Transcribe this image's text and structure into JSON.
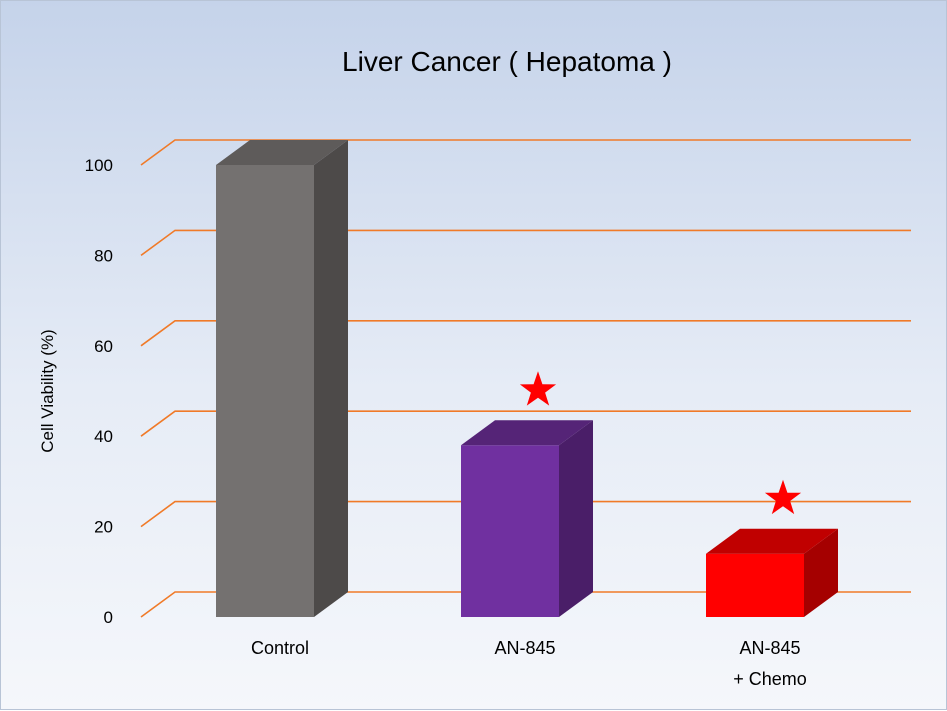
{
  "chart_data": {
    "type": "bar",
    "title": "Liver Cancer ( Hepatoma )",
    "xlabel": "",
    "ylabel": "Cell Viability (%)",
    "ylim": [
      0,
      100
    ],
    "yticks": [
      0,
      20,
      40,
      60,
      80,
      100
    ],
    "grid": true,
    "categories": [
      "Control",
      "AN-845",
      "AN-845\n+ Chemo"
    ],
    "category_lines": [
      [
        "Control"
      ],
      [
        "AN-845"
      ],
      [
        "AN-845",
        "+ Chemo"
      ]
    ],
    "values": [
      100,
      38,
      14
    ],
    "significance_marks": [
      false,
      true,
      true
    ],
    "colors": {
      "bars": [
        [
          "#747170",
          "#4d4a49",
          "#5e5b5a"
        ],
        [
          "#7030a0",
          "#4a1e68",
          "#552477"
        ],
        [
          "#ff0000",
          "#a50000",
          "#c00000"
        ]
      ],
      "grid": "#f07a28",
      "star": "#ff0000"
    }
  }
}
